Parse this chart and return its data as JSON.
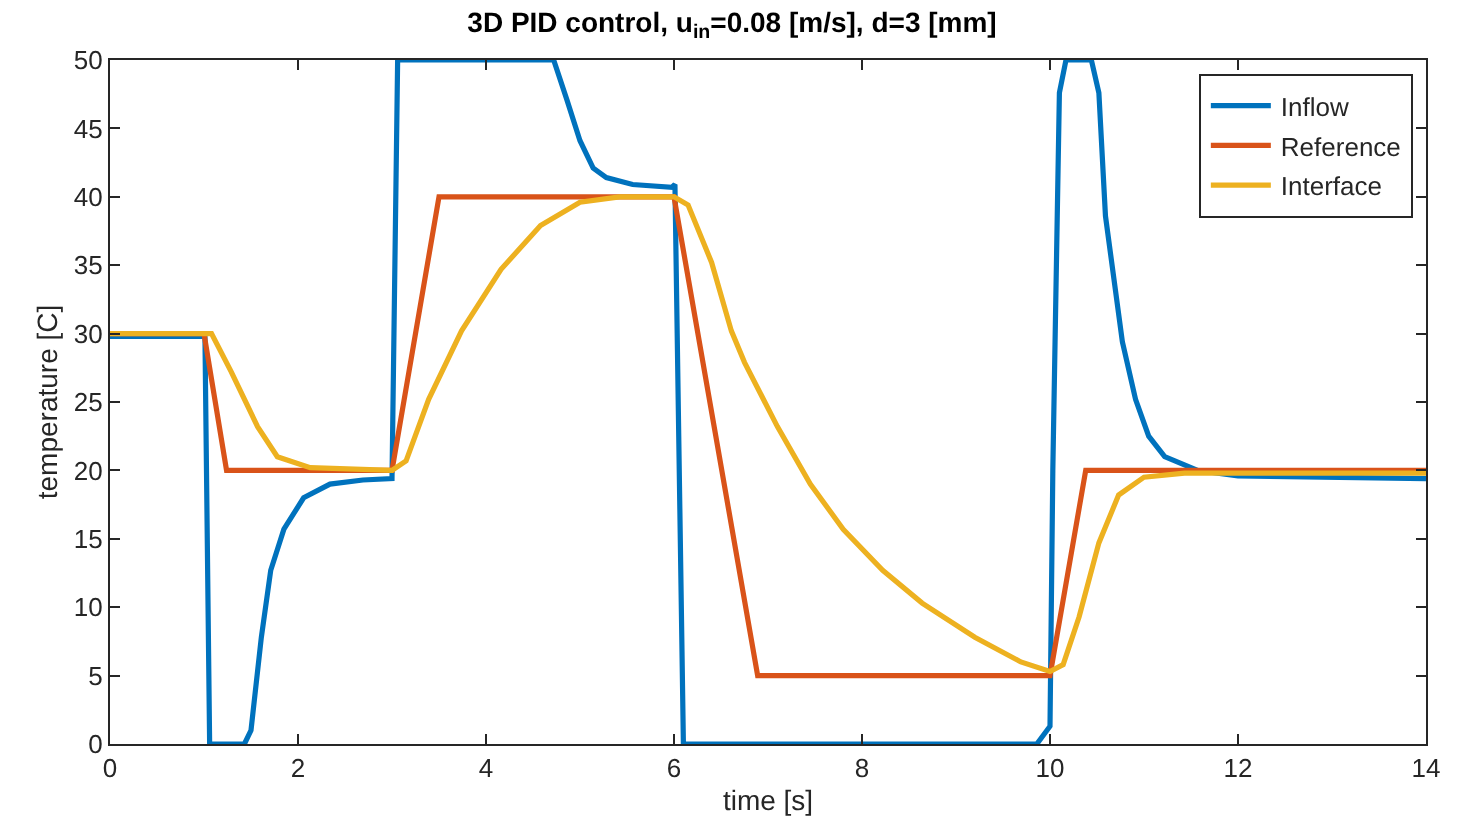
{
  "chart_data": {
    "type": "line",
    "title": "3D PID control, u$_{in}$=0.08 [m/s], d=3 [mm]",
    "xlabel": "time [s]",
    "ylabel": "temperature [C]",
    "xlim": [
      0,
      14
    ],
    "xticks": [
      0,
      2,
      4,
      6,
      8,
      10,
      12,
      14
    ],
    "ylim": [
      0,
      50
    ],
    "yticks": [
      0,
      5,
      10,
      15,
      20,
      25,
      30,
      35,
      40,
      45,
      50
    ],
    "grid": false,
    "legend": "top right",
    "marker": "none",
    "line_style": "solid",
    "series": [
      {
        "name": "Inflow",
        "color": "#0072bd",
        "x": [
          0,
          1.0,
          1.01,
          1.06,
          1.43,
          1.5,
          1.61,
          1.71,
          1.85,
          2.06,
          2.34,
          2.69,
          3.0,
          3.06,
          4.72,
          4.86,
          5.0,
          5.14,
          5.28,
          5.56,
          5.98,
          6.01,
          6.1,
          9.86,
          10.0,
          10.03,
          10.1,
          10.17,
          10.44,
          10.52,
          10.59,
          10.77,
          10.91,
          11.05,
          11.22,
          11.43,
          11.57,
          12.0,
          14.0
        ],
        "values": [
          29.8,
          29.8,
          29.8,
          0,
          0,
          1.0,
          7.8,
          12.7,
          15.7,
          18.0,
          19.0,
          19.3,
          19.4,
          50,
          50,
          47.1,
          44.1,
          42.1,
          41.4,
          40.9,
          40.7,
          40.9,
          0,
          0,
          1.3,
          20,
          47.6,
          50,
          50,
          47.6,
          38.6,
          29.4,
          25.2,
          22.5,
          21.0,
          20.4,
          20.0,
          19.6,
          19.4
        ]
      },
      {
        "name": "Reference",
        "color": "#d95319",
        "x": [
          0,
          1.0,
          1.24,
          3.0,
          3.5,
          6.0,
          6.89,
          10.0,
          10.38,
          14.0
        ],
        "values": [
          30,
          30,
          20,
          20,
          40,
          40,
          5,
          5,
          20,
          20
        ]
      },
      {
        "name": "Interface",
        "color": "#edb120",
        "x": [
          0,
          1.08,
          1.29,
          1.57,
          1.78,
          2.13,
          3.0,
          3.15,
          3.39,
          3.74,
          4.16,
          4.58,
          5.0,
          5.42,
          6.0,
          6.15,
          6.4,
          6.61,
          6.75,
          7.1,
          7.45,
          7.8,
          8.22,
          8.64,
          9.2,
          9.69,
          10.0,
          10.14,
          10.31,
          10.52,
          10.73,
          11.0,
          11.43,
          14.0
        ],
        "values": [
          30,
          30,
          27.2,
          23.2,
          21.0,
          20.2,
          20.0,
          20.7,
          25.2,
          30.2,
          34.7,
          37.9,
          39.6,
          40.0,
          40,
          39.4,
          35.2,
          30.2,
          27.9,
          23.2,
          19.0,
          15.7,
          12.7,
          10.3,
          7.8,
          6.0,
          5.3,
          5.8,
          9.3,
          14.7,
          18.2,
          19.5,
          19.8,
          19.8
        ]
      }
    ]
  }
}
